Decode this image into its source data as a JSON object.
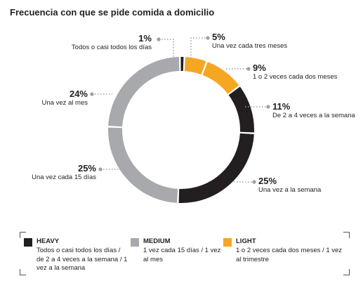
{
  "chart_data": {
    "type": "pie",
    "title": "Frecuencia con que se pide comida a domicilio",
    "unit": "%",
    "slices": [
      {
        "value": 5,
        "label": "5%",
        "description": "Una vez cada tres meses",
        "segment": "light"
      },
      {
        "value": 9,
        "label": "9%",
        "description": "1 o 2 veces cada dos meses",
        "segment": "light"
      },
      {
        "value": 11,
        "label": "11%",
        "description": "De 2 a 4 veces a la semana",
        "segment": "heavy"
      },
      {
        "value": 25,
        "label": "25%",
        "description": "Una vez a la semana",
        "segment": "heavy"
      },
      {
        "value": 25,
        "label": "25%",
        "description": "Una vez cada 15 días",
        "segment": "medium"
      },
      {
        "value": 24,
        "label": "24%",
        "description": "Una vez al mes",
        "segment": "medium"
      },
      {
        "value": 1,
        "label": "1%",
        "description": "Todos o casi todos los días",
        "segment": "heavy"
      }
    ],
    "legend": [
      {
        "key": "heavy",
        "name": "HEAVY",
        "color": "#231f20",
        "description": "Todos o casi todos los días / de 2 a 4 veces a la semana / 1 vez a la semana"
      },
      {
        "key": "medium",
        "name": "MEDIUM",
        "color": "#a7a9ac",
        "description": "1 vez cada 15 días / 1 vez al mes"
      },
      {
        "key": "light",
        "name": "LIGHT",
        "color": "#f5a623",
        "description": "1 o 2 veces cada dos meses / 1 vez al trimestre"
      }
    ],
    "legend_position": "bottom"
  }
}
